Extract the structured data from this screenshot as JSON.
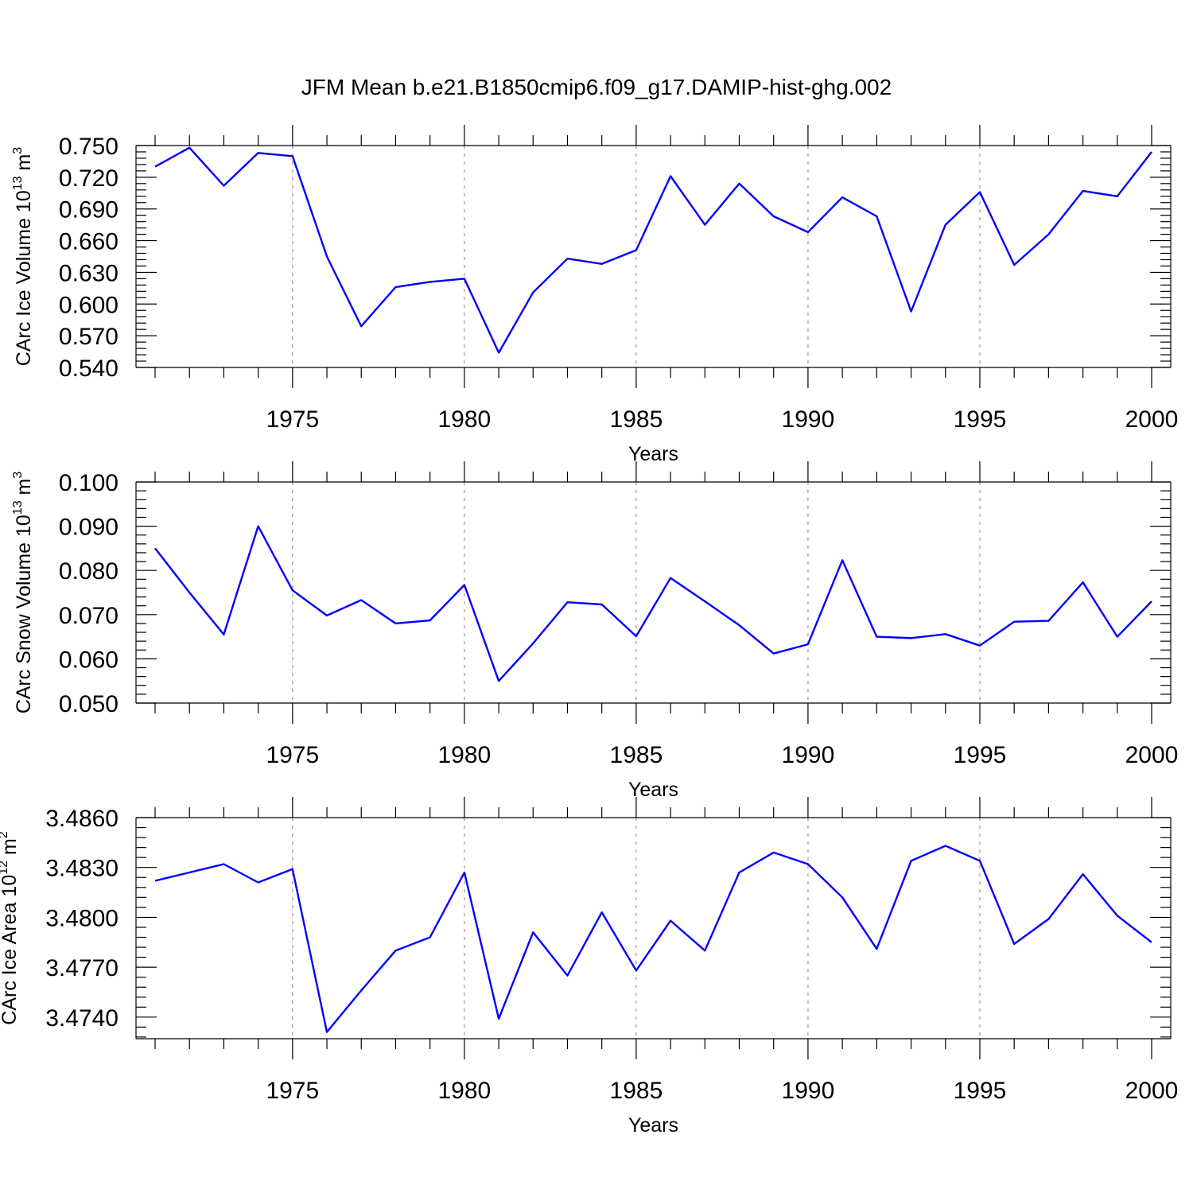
{
  "figure": {
    "title": "JFM Mean b.e21.B1850cmip6.f09_g17.DAMIP-hist-ghg.002",
    "line_color": "#0000ff"
  },
  "chart_data": [
    {
      "type": "line",
      "title": "",
      "xlabel": "Years",
      "ylabel": "CArc Ice Volume 10",
      "ylabel_exponent": "13",
      "ylabel_unit": " m",
      "ylabel_unit_exponent": "3",
      "xlim": [
        1971,
        2000
      ],
      "ylim": [
        0.54,
        0.75
      ],
      "xticks": [
        1975,
        1980,
        1985,
        1990,
        1995,
        2000
      ],
      "xtick_labels": [
        "1975",
        "1980",
        "1985",
        "1990",
        "1995",
        "2000"
      ],
      "yticks": [
        0.54,
        0.57,
        0.6,
        0.63,
        0.66,
        0.69,
        0.72,
        0.75
      ],
      "ytick_labels": [
        "0.540",
        "0.570",
        "0.600",
        "0.630",
        "0.660",
        "0.690",
        "0.720",
        "0.750"
      ],
      "grid": "vertical dashed at major x ticks",
      "series": [
        {
          "name": "CArc Ice Volume",
          "x": [
            1971,
            1972,
            1973,
            1974,
            1975,
            1976,
            1977,
            1978,
            1979,
            1980,
            1981,
            1982,
            1983,
            1984,
            1985,
            1986,
            1987,
            1988,
            1989,
            1990,
            1991,
            1992,
            1993,
            1994,
            1995,
            1996,
            1997,
            1998,
            1999,
            2000
          ],
          "values": [
            0.73,
            0.748,
            0.712,
            0.743,
            0.74,
            0.645,
            0.579,
            0.616,
            0.621,
            0.624,
            0.554,
            0.611,
            0.643,
            0.638,
            0.651,
            0.721,
            0.675,
            0.714,
            0.683,
            0.668,
            0.701,
            0.683,
            0.593,
            0.675,
            0.706,
            0.637,
            0.666,
            0.707,
            0.702,
            0.744
          ]
        }
      ]
    },
    {
      "type": "line",
      "title": "",
      "xlabel": "Years",
      "ylabel": "CArc Snow Volume 10",
      "ylabel_exponent": "13",
      "ylabel_unit": " m",
      "ylabel_unit_exponent": "3",
      "xlim": [
        1971,
        2000
      ],
      "ylim": [
        0.05,
        0.1
      ],
      "xticks": [
        1975,
        1980,
        1985,
        1990,
        1995,
        2000
      ],
      "xtick_labels": [
        "1975",
        "1980",
        "1985",
        "1990",
        "1995",
        "2000"
      ],
      "yticks": [
        0.05,
        0.06,
        0.07,
        0.08,
        0.09,
        0.1
      ],
      "ytick_labels": [
        "0.050",
        "0.060",
        "0.070",
        "0.080",
        "0.090",
        "0.100"
      ],
      "grid": "vertical dashed at major x ticks",
      "series": [
        {
          "name": "CArc Snow Volume",
          "x": [
            1971,
            1972,
            1973,
            1974,
            1975,
            1976,
            1977,
            1978,
            1979,
            1980,
            1981,
            1982,
            1983,
            1984,
            1985,
            1986,
            1987,
            1988,
            1989,
            1990,
            1991,
            1992,
            1993,
            1994,
            1995,
            1996,
            1997,
            1998,
            1999,
            2000
          ],
          "values": [
            0.085,
            0.075,
            0.0655,
            0.09,
            0.0755,
            0.0698,
            0.0733,
            0.068,
            0.0687,
            0.0767,
            0.055,
            0.0635,
            0.0728,
            0.0723,
            0.0651,
            0.0783,
            0.073,
            0.0676,
            0.0612,
            0.0633,
            0.0823,
            0.065,
            0.0647,
            0.0656,
            0.063,
            0.0684,
            0.0686,
            0.0773,
            0.065,
            0.073
          ]
        }
      ]
    },
    {
      "type": "line",
      "title": "",
      "xlabel": "Years",
      "ylabel": "CArc Ice Area 10",
      "ylabel_exponent": "12",
      "ylabel_unit": " m",
      "ylabel_unit_exponent": "2",
      "xlim": [
        1971,
        2000
      ],
      "ylim": [
        3.4727,
        3.486
      ],
      "xticks": [
        1975,
        1980,
        1985,
        1990,
        1995,
        2000
      ],
      "xtick_labels": [
        "1975",
        "1980",
        "1985",
        "1990",
        "1995",
        "2000"
      ],
      "yticks": [
        3.474,
        3.477,
        3.48,
        3.483,
        3.486
      ],
      "ytick_labels": [
        "3.4740",
        "3.4770",
        "3.4800",
        "3.4830",
        "3.4860"
      ],
      "grid": "vertical dashed at major x ticks",
      "series": [
        {
          "name": "CArc Ice Area",
          "x": [
            1971,
            1972,
            1973,
            1974,
            1975,
            1976,
            1977,
            1978,
            1979,
            1980,
            1981,
            1982,
            1983,
            1984,
            1985,
            1986,
            1987,
            1988,
            1989,
            1990,
            1991,
            1992,
            1993,
            1994,
            1995,
            1996,
            1997,
            1998,
            1999,
            2000
          ],
          "values": [
            3.4822,
            3.4827,
            3.4832,
            3.4821,
            3.4829,
            3.4731,
            3.4756,
            3.478,
            3.4788,
            3.4827,
            3.4739,
            3.4791,
            3.4765,
            3.4803,
            3.4768,
            3.4798,
            3.478,
            3.4827,
            3.4839,
            3.4832,
            3.4812,
            3.4781,
            3.4834,
            3.4843,
            3.4834,
            3.4784,
            3.4799,
            3.4826,
            3.4801,
            3.4785
          ]
        }
      ]
    }
  ]
}
